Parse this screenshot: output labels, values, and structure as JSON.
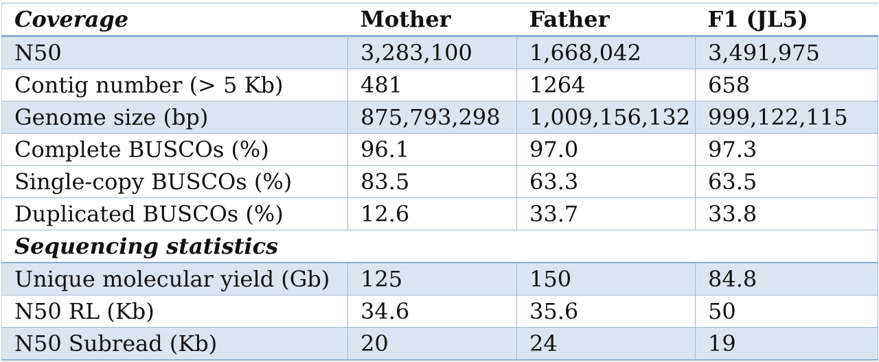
{
  "table": {
    "header": {
      "label": "Coverage",
      "columns": [
        "Mother",
        "Father",
        "F1 (JL5)"
      ]
    },
    "coverage_rows": [
      {
        "label": "N50",
        "values": [
          "3,283,100",
          "1,668,042",
          "3,491,975"
        ]
      },
      {
        "label": "Contig number (> 5 Kb)",
        "values": [
          "481",
          "1264",
          "658"
        ]
      },
      {
        "label": "Genome size (bp)",
        "values": [
          "875,793,298",
          "1,009,156,132",
          "999,122,115"
        ]
      },
      {
        "label": "Complete BUSCOs (%)",
        "values": [
          "96.1",
          "97.0",
          "97.3"
        ]
      },
      {
        "label": "Single-copy BUSCOs (%)",
        "values": [
          "83.5",
          "63.3",
          "63.5"
        ]
      },
      {
        "label": "Duplicated BUSCOs (%)",
        "values": [
          "12.6",
          "33.7",
          "33.8"
        ]
      }
    ],
    "section2_label": "Sequencing statistics",
    "sequencing_rows": [
      {
        "label": "Unique molecular yield (Gb)",
        "values": [
          "125",
          "150",
          "84.8"
        ]
      },
      {
        "label": "N50 RL (Kb)",
        "values": [
          "34.6",
          "35.6",
          "50"
        ]
      },
      {
        "label": "N50 Subread (Kb)",
        "values": [
          "20",
          "24",
          "19"
        ]
      }
    ]
  },
  "colors": {
    "row_shade": "#dbe5f1",
    "border": "#9fb7d3",
    "header_rule": "#8aaed4"
  }
}
